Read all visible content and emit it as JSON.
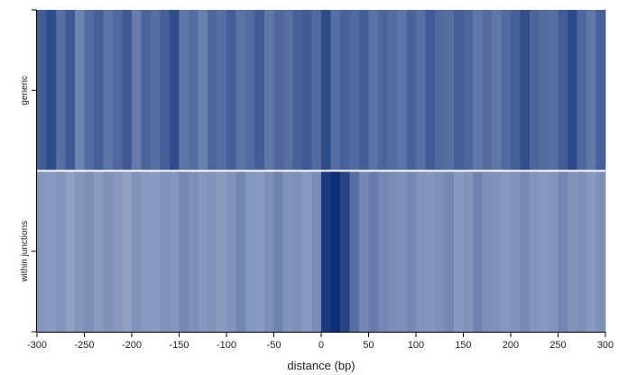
{
  "chart_data": {
    "type": "heatmap",
    "title": "",
    "xlabel": "distance (bp)",
    "ylabel": "",
    "xlim": [
      -300,
      300
    ],
    "bin_width": 10,
    "x_ticks": [
      -300,
      -250,
      -200,
      -150,
      -100,
      -50,
      0,
      50,
      100,
      150,
      200,
      250,
      300
    ],
    "x_tick_labels": [
      "-300",
      "-250",
      "-200",
      "-150",
      "-100",
      "-50",
      "0",
      "50",
      "100",
      "150",
      "200",
      "250",
      "300"
    ],
    "rows": [
      {
        "name": "generic",
        "values": [
          0.72,
          0.82,
          0.6,
          0.74,
          0.48,
          0.62,
          0.7,
          0.57,
          0.64,
          0.74,
          0.52,
          0.67,
          0.6,
          0.7,
          0.82,
          0.56,
          0.62,
          0.5,
          0.66,
          0.6,
          0.7,
          0.58,
          0.63,
          0.72,
          0.55,
          0.65,
          0.6,
          0.68,
          0.73,
          0.64,
          0.82,
          0.6,
          0.69,
          0.64,
          0.71,
          0.58,
          0.66,
          0.62,
          0.57,
          0.68,
          0.6,
          0.73,
          0.64,
          0.61,
          0.7,
          0.66,
          0.56,
          0.62,
          0.55,
          0.64,
          0.7,
          0.8,
          0.66,
          0.62,
          0.6,
          0.72,
          0.84,
          0.65,
          0.55,
          0.7
        ]
      },
      {
        "name": "within junctions",
        "values": [
          0.36,
          0.34,
          0.38,
          0.3,
          0.36,
          0.4,
          0.33,
          0.38,
          0.35,
          0.3,
          0.37,
          0.34,
          0.33,
          0.38,
          0.36,
          0.44,
          0.4,
          0.35,
          0.37,
          0.33,
          0.38,
          0.46,
          0.36,
          0.33,
          0.4,
          0.47,
          0.38,
          0.4,
          0.35,
          0.42,
          0.94,
          1.0,
          0.86,
          0.6,
          0.44,
          0.52,
          0.45,
          0.42,
          0.4,
          0.44,
          0.38,
          0.36,
          0.4,
          0.44,
          0.34,
          0.37,
          0.47,
          0.4,
          0.38,
          0.35,
          0.37,
          0.44,
          0.36,
          0.34,
          0.38,
          0.46,
          0.37,
          0.4,
          0.34,
          0.4
        ]
      }
    ],
    "color_low": "#c7d0e3",
    "color_high": "#0e2f78",
    "separator_color": "#ffffff"
  }
}
